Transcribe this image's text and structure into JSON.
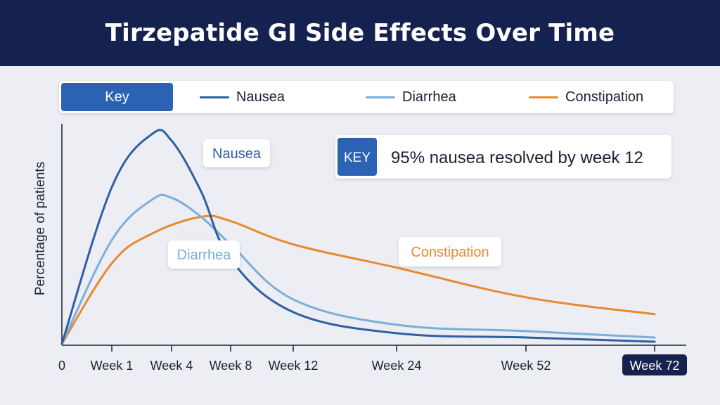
{
  "header": {
    "title": "Tirzepatide GI Side Effects Over Time"
  },
  "legend": {
    "key_label": "Key",
    "items": [
      {
        "name": "Nausea",
        "color": "#2f5fa3"
      },
      {
        "name": "Diarrhea",
        "color": "#7aaedb"
      },
      {
        "name": "Constipation",
        "color": "#e8892f"
      }
    ]
  },
  "callout": {
    "badge": "KEY",
    "text": "95% nausea resolved by week 12"
  },
  "chart_data": {
    "type": "line",
    "title": "Tirzepatide GI Side Effects Over Time",
    "ylabel": "Percentage of patients",
    "xlabel": "",
    "x_ticks": [
      {
        "label": "0",
        "x": 0
      },
      {
        "label": "Week 1",
        "x": 1
      },
      {
        "label": "Week 4",
        "x": 4
      },
      {
        "label": "Week 8",
        "x": 8
      },
      {
        "label": "Week 12",
        "x": 12
      },
      {
        "label": "Week 24",
        "x": 24
      },
      {
        "label": "Week 52",
        "x": 52
      },
      {
        "label": "Week 72",
        "x": 72
      }
    ],
    "highlight_tick": "Week 72",
    "y_range_relative": [
      0,
      1
    ],
    "grid": false,
    "series": [
      {
        "name": "Nausea",
        "color": "#2f5fa3",
        "points": [
          [
            0,
            0
          ],
          [
            1,
            0.74
          ],
          [
            3,
            0.99
          ],
          [
            4,
            0.96
          ],
          [
            6,
            0.72
          ],
          [
            8,
            0.4
          ],
          [
            12,
            0.15
          ],
          [
            24,
            0.05
          ],
          [
            52,
            0.03
          ],
          [
            72,
            0.01
          ]
        ]
      },
      {
        "name": "Diarrhea",
        "color": "#7aaedb",
        "points": [
          [
            0,
            0
          ],
          [
            1,
            0.49
          ],
          [
            3,
            0.68
          ],
          [
            4,
            0.69
          ],
          [
            6,
            0.6
          ],
          [
            8,
            0.47
          ],
          [
            12,
            0.21
          ],
          [
            24,
            0.09
          ],
          [
            52,
            0.06
          ],
          [
            72,
            0.03
          ]
        ]
      },
      {
        "name": "Constipation",
        "color": "#e8892f",
        "points": [
          [
            0,
            0
          ],
          [
            1,
            0.38
          ],
          [
            3,
            0.52
          ],
          [
            6,
            0.6
          ],
          [
            8,
            0.58
          ],
          [
            12,
            0.47
          ],
          [
            24,
            0.36
          ],
          [
            52,
            0.22
          ],
          [
            72,
            0.14
          ]
        ]
      }
    ],
    "annotations": [
      {
        "text": "Nausea",
        "series": "Nausea"
      },
      {
        "text": "Diarrhea",
        "series": "Diarrhea"
      },
      {
        "text": "Constipation",
        "series": "Constipation"
      }
    ]
  }
}
